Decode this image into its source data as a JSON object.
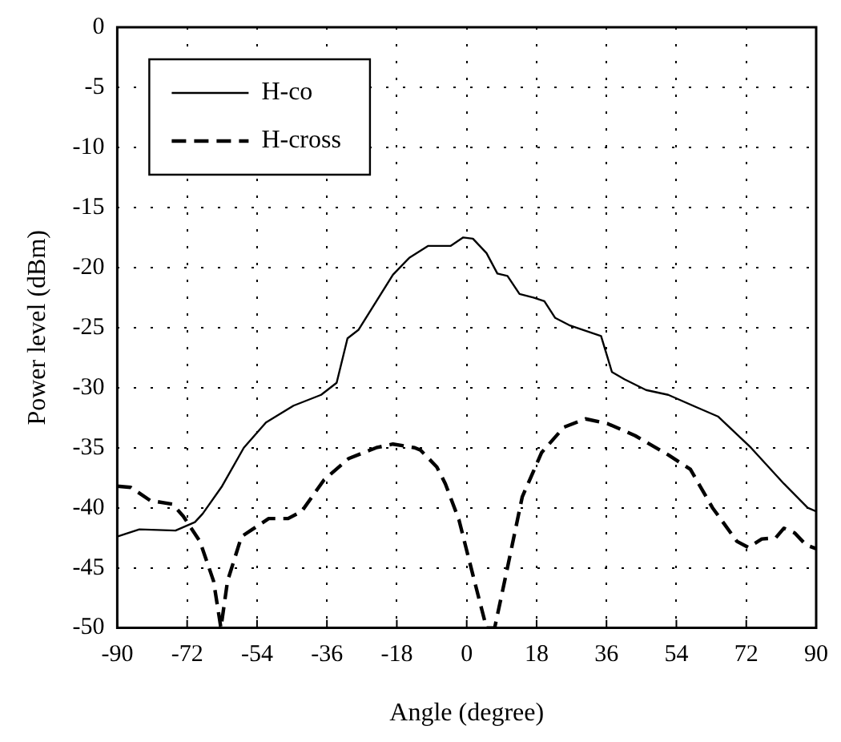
{
  "chart_data": {
    "type": "line",
    "xlabel": "Angle (degree)",
    "ylabel": "Power level (dBm)",
    "xlim": [
      -90,
      90
    ],
    "xticks": [
      -90,
      -72,
      -54,
      -36,
      -18,
      0,
      18,
      36,
      54,
      72,
      90
    ],
    "ylim": [
      -50,
      0
    ],
    "yticks": [
      -50,
      -45,
      -40,
      -35,
      -30,
      -25,
      -20,
      -15,
      -10,
      -5,
      0
    ],
    "grid": true,
    "legend": "top left",
    "marker": "none",
    "series": [
      {
        "name": "H-co",
        "color": "#000000",
        "line_style": "solid",
        "x": [
          -90,
          -84.3,
          -75,
          -70,
          -68,
          -63,
          -57.4,
          -51.7,
          -44.6,
          -37.5,
          -33.5,
          -30.7,
          -27.9,
          -19,
          -14.8,
          -9.9,
          -4.1,
          -0.9,
          1.6,
          5.1,
          7.9,
          10.5,
          13.6,
          17.2,
          20,
          22.8,
          26.4,
          34.6,
          37.4,
          40.6,
          46.2,
          51.9,
          60.4,
          64.7,
          73.2,
          81.7,
          87.8,
          90
        ],
        "values": [
          -42.4,
          -41.8,
          -41.9,
          -41.2,
          -40.5,
          -38.2,
          -35,
          -32.9,
          -31.5,
          -30.6,
          -29.6,
          -25.9,
          -25.2,
          -20.6,
          -19.2,
          -18.2,
          -18.2,
          -17.5,
          -17.6,
          -18.8,
          -20.5,
          -20.7,
          -22.2,
          -22.5,
          -22.8,
          -24.2,
          -24.8,
          -25.7,
          -28.7,
          -29.3,
          -30.2,
          -30.6,
          -31.8,
          -32.4,
          -35,
          -38,
          -40,
          -40.3
        ]
      },
      {
        "name": "H-cross",
        "color": "#000000",
        "line_style": "dashed",
        "x": [
          -90,
          -86.5,
          -81.5,
          -75.8,
          -73,
          -68.7,
          -65.2,
          -63.3,
          -61.6,
          -58,
          -55.2,
          -51,
          -46,
          -42.5,
          -36.8,
          -30.4,
          -23.3,
          -19,
          -13.4,
          -11.9,
          -7.7,
          -5.5,
          -2,
          1.6,
          5.1,
          7.2,
          10.1,
          14.3,
          19.3,
          25,
          30.6,
          36.3,
          43.4,
          51.9,
          57.6,
          63.3,
          69.6,
          72.5,
          76,
          79.6,
          81.7,
          84.5,
          87.4,
          90
        ],
        "values": [
          -38.2,
          -38.3,
          -39.4,
          -39.7,
          -40.7,
          -42.8,
          -46.1,
          -50,
          -46.1,
          -42.4,
          -41.8,
          -40.9,
          -40.9,
          -40.3,
          -37.7,
          -35.9,
          -35,
          -34.7,
          -35,
          -35.2,
          -36.6,
          -38,
          -41,
          -45.6,
          -50,
          -50,
          -45.6,
          -39.1,
          -35.4,
          -33.3,
          -32.6,
          -33,
          -34,
          -35.6,
          -36.8,
          -40,
          -42.8,
          -43.3,
          -42.6,
          -42.5,
          -41.7,
          -42.1,
          -43.1,
          -43.4
        ]
      }
    ]
  }
}
